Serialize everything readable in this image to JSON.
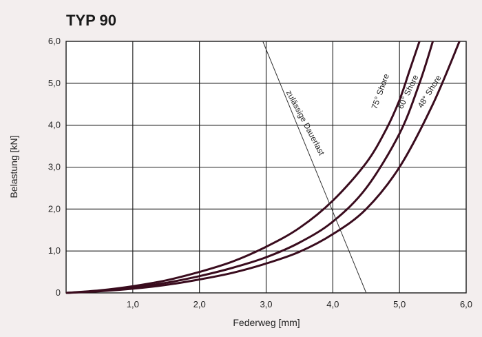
{
  "chart_data": {
    "type": "line",
    "title": "TYP 90",
    "xlabel": "Federweg [mm]",
    "ylabel": "Belastung [kN]",
    "xlim": [
      0,
      6.0
    ],
    "ylim": [
      0,
      6.0
    ],
    "x_ticks": [
      "1,0",
      "2,0",
      "3,0",
      "4,0",
      "5,0",
      "6,0"
    ],
    "y_ticks": [
      "0",
      "1,0",
      "2,0",
      "3,0",
      "4,0",
      "5,0",
      "6,0"
    ],
    "grid": true,
    "series": [
      {
        "name": "75° Shore",
        "x": [
          0,
          0.5,
          1.0,
          1.5,
          2.0,
          2.5,
          3.0,
          3.5,
          4.0,
          4.5,
          4.8,
          5.0,
          5.15,
          5.3
        ],
        "y": [
          0,
          0.06,
          0.16,
          0.3,
          0.5,
          0.75,
          1.1,
          1.55,
          2.2,
          3.1,
          3.9,
          4.6,
          5.3,
          6.0
        ]
      },
      {
        "name": "60° Shore",
        "x": [
          0,
          0.5,
          1.0,
          1.5,
          2.0,
          2.5,
          3.0,
          3.5,
          4.0,
          4.5,
          5.0,
          5.3,
          5.5
        ],
        "y": [
          0,
          0.05,
          0.13,
          0.24,
          0.4,
          0.6,
          0.85,
          1.2,
          1.7,
          2.5,
          3.8,
          5.0,
          6.0
        ]
      },
      {
        "name": "48° Shore",
        "x": [
          0,
          0.5,
          1.0,
          1.5,
          2.0,
          2.5,
          3.0,
          3.5,
          4.0,
          4.5,
          5.0,
          5.5,
          5.9
        ],
        "y": [
          0,
          0.04,
          0.1,
          0.19,
          0.32,
          0.48,
          0.7,
          0.98,
          1.4,
          2.0,
          3.0,
          4.5,
          6.0
        ]
      },
      {
        "name": "zulässige Dauerlast",
        "x": [
          2.95,
          4.5
        ],
        "y": [
          6.0,
          0
        ]
      }
    ]
  }
}
